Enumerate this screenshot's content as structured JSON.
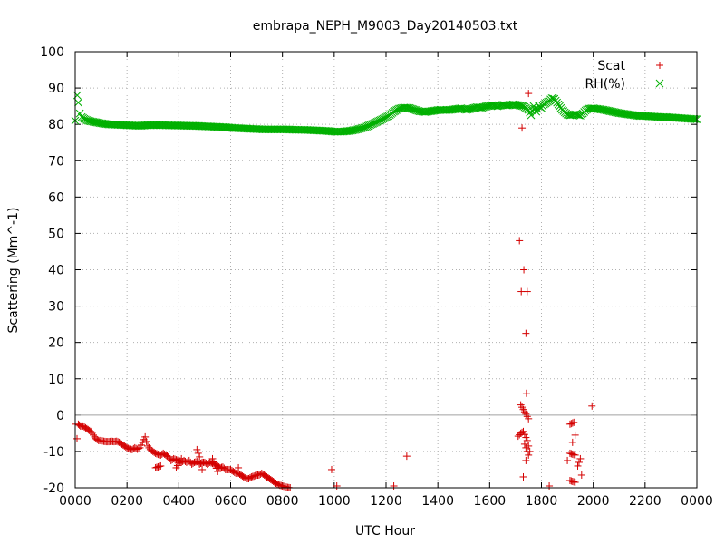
{
  "chart_data": {
    "type": "scatter",
    "title": "embrapa_NEPH_M9003_Day20140503.txt",
    "xlabel": "UTC Hour",
    "ylabel": "Scattering (Mm^-1)",
    "xlim": [
      0,
      24
    ],
    "ylim": [
      -20,
      100
    ],
    "x_tick_labels": [
      "0000",
      "0200",
      "0400",
      "0600",
      "0800",
      "1000",
      "1200",
      "1400",
      "1600",
      "1800",
      "2000",
      "2200",
      "0000"
    ],
    "y_ticks": [
      -20,
      -10,
      0,
      10,
      20,
      30,
      40,
      50,
      60,
      70,
      80,
      90,
      100
    ],
    "zero_line": true,
    "grid": true,
    "legend_position": "top-right",
    "series": [
      {
        "name": "Scat",
        "marker": "plus",
        "color": "#d40000",
        "points": [
          [
            0.0,
            -2.5
          ],
          [
            0.07,
            -6.5
          ],
          [
            0.12,
            -2.5
          ],
          [
            0.2,
            -3.0
          ],
          [
            0.3,
            -3.0
          ],
          [
            0.4,
            -3.5
          ],
          [
            0.5,
            -4.0
          ],
          [
            0.6,
            -4.5
          ],
          [
            0.7,
            -5.5
          ],
          [
            0.8,
            -6.5
          ],
          [
            0.9,
            -7.0
          ],
          [
            1.0,
            -7.0
          ],
          [
            1.1,
            -7.2
          ],
          [
            1.2,
            -7.3
          ],
          [
            1.3,
            -7.3
          ],
          [
            1.4,
            -7.2
          ],
          [
            1.5,
            -7.3
          ],
          [
            1.6,
            -7.2
          ],
          [
            1.7,
            -7.5
          ],
          [
            1.8,
            -8.0
          ],
          [
            1.9,
            -8.5
          ],
          [
            2.0,
            -9.0
          ],
          [
            2.1,
            -9.3
          ],
          [
            2.2,
            -9.5
          ],
          [
            2.3,
            -9.0
          ],
          [
            2.4,
            -9.4
          ],
          [
            2.5,
            -9.0
          ],
          [
            2.6,
            -7.5
          ],
          [
            2.7,
            -6.0
          ],
          [
            2.8,
            -8.5
          ],
          [
            2.9,
            -9.5
          ],
          [
            3.0,
            -10.0
          ],
          [
            3.1,
            -10.5
          ],
          [
            3.2,
            -10.8
          ],
          [
            3.3,
            -11.0
          ],
          [
            3.4,
            -10.5
          ],
          [
            3.5,
            -11.0
          ],
          [
            3.6,
            -11.5
          ],
          [
            3.7,
            -12.5
          ],
          [
            3.8,
            -12.0
          ],
          [
            3.9,
            -12.3
          ],
          [
            4.0,
            -12.5
          ],
          [
            4.1,
            -13.0
          ],
          [
            4.2,
            -12.5
          ],
          [
            4.3,
            -13.0
          ],
          [
            4.4,
            -12.5
          ],
          [
            4.5,
            -13.5
          ],
          [
            4.6,
            -13.0
          ],
          [
            4.7,
            -12.8
          ],
          [
            4.8,
            -13.5
          ],
          [
            4.9,
            -13.0
          ],
          [
            5.0,
            -13.0
          ],
          [
            5.1,
            -13.5
          ],
          [
            5.2,
            -13.0
          ],
          [
            5.3,
            -13.3
          ],
          [
            5.4,
            -13.5
          ],
          [
            5.5,
            -14.0
          ],
          [
            5.6,
            -14.5
          ],
          [
            5.7,
            -14.3
          ],
          [
            5.8,
            -15.0
          ],
          [
            5.9,
            -15.0
          ],
          [
            6.0,
            -15.0
          ],
          [
            6.1,
            -15.5
          ],
          [
            6.2,
            -16.0
          ],
          [
            6.3,
            -16.0
          ],
          [
            6.4,
            -16.5
          ],
          [
            6.5,
            -17.0
          ],
          [
            6.6,
            -17.5
          ],
          [
            6.7,
            -17.5
          ],
          [
            6.8,
            -17.0
          ],
          [
            6.9,
            -16.8
          ],
          [
            7.0,
            -16.5
          ],
          [
            7.1,
            -16.5
          ],
          [
            7.2,
            -16.0
          ],
          [
            7.3,
            -16.5
          ],
          [
            7.4,
            -17.0
          ],
          [
            7.5,
            -17.5
          ],
          [
            7.6,
            -18.0
          ],
          [
            7.7,
            -18.5
          ],
          [
            7.8,
            -19.0
          ],
          [
            7.9,
            -19.3
          ],
          [
            8.0,
            -19.5
          ],
          [
            8.1,
            -19.7
          ],
          [
            8.2,
            -19.9
          ],
          [
            8.3,
            -20.0
          ],
          [
            3.1,
            -14.5
          ],
          [
            3.3,
            -14.0
          ],
          [
            3.9,
            -14.5
          ],
          [
            4.1,
            -12.0
          ],
          [
            4.7,
            -9.5
          ],
          [
            4.8,
            -11.5
          ],
          [
            4.9,
            -15.0
          ],
          [
            5.3,
            -12.0
          ],
          [
            5.5,
            -15.5
          ],
          [
            6.3,
            -14.5
          ],
          [
            9.9,
            -15.0
          ],
          [
            10.1,
            -19.5
          ],
          [
            12.3,
            -19.5
          ],
          [
            12.8,
            -11.3
          ],
          [
            17.15,
            48.0
          ],
          [
            17.22,
            34.0
          ],
          [
            17.32,
            40.0
          ],
          [
            17.4,
            22.5
          ],
          [
            17.45,
            34.0
          ],
          [
            17.25,
            79.0
          ],
          [
            17.5,
            88.5
          ],
          [
            17.42,
            6.0
          ],
          [
            17.2,
            2.8
          ],
          [
            17.5,
            -1.0
          ],
          [
            17.1,
            -5.8
          ],
          [
            17.2,
            -5.0
          ],
          [
            17.3,
            -4.5
          ],
          [
            17.45,
            -7.0
          ],
          [
            17.55,
            -10.0
          ],
          [
            17.35,
            -8.0
          ],
          [
            17.5,
            -11.0
          ],
          [
            17.4,
            -12.5
          ],
          [
            17.3,
            -17.0
          ],
          [
            18.3,
            -19.5
          ],
          [
            19.1,
            -2.5
          ],
          [
            19.25,
            -2.0
          ],
          [
            19.3,
            -5.5
          ],
          [
            19.2,
            -7.5
          ],
          [
            19.1,
            -10.5
          ],
          [
            19.3,
            -11.0
          ],
          [
            19.0,
            -12.5
          ],
          [
            19.4,
            -14.0
          ],
          [
            19.5,
            -12.0
          ],
          [
            19.55,
            -16.5
          ],
          [
            19.1,
            -18.0
          ],
          [
            19.3,
            -18.5
          ],
          [
            19.95,
            2.5
          ]
        ]
      },
      {
        "name": "RH(%)",
        "marker": "cross",
        "color": "#00b000",
        "points": [
          [
            0.0,
            81.0
          ],
          [
            0.08,
            88.0
          ],
          [
            0.12,
            86.0
          ],
          [
            0.18,
            83.0
          ],
          [
            0.25,
            82.0
          ],
          [
            0.35,
            81.5
          ],
          [
            0.5,
            81.0
          ],
          [
            0.7,
            80.7
          ],
          [
            1.0,
            80.3
          ],
          [
            1.3,
            80.0
          ],
          [
            1.6,
            79.9
          ],
          [
            1.9,
            79.8
          ],
          [
            2.2,
            79.7
          ],
          [
            2.5,
            79.6
          ],
          [
            2.8,
            79.8
          ],
          [
            3.1,
            79.8
          ],
          [
            3.4,
            79.8
          ],
          [
            3.7,
            79.7
          ],
          [
            4.0,
            79.7
          ],
          [
            4.3,
            79.6
          ],
          [
            4.6,
            79.6
          ],
          [
            4.9,
            79.5
          ],
          [
            5.2,
            79.4
          ],
          [
            5.5,
            79.3
          ],
          [
            5.8,
            79.2
          ],
          [
            6.1,
            79.0
          ],
          [
            6.4,
            78.9
          ],
          [
            6.7,
            78.8
          ],
          [
            7.0,
            78.7
          ],
          [
            7.3,
            78.6
          ],
          [
            7.6,
            78.6
          ],
          [
            7.9,
            78.6
          ],
          [
            8.2,
            78.6
          ],
          [
            8.5,
            78.5
          ],
          [
            8.8,
            78.5
          ],
          [
            9.1,
            78.4
          ],
          [
            9.4,
            78.3
          ],
          [
            9.7,
            78.2
          ],
          [
            10.0,
            78.0
          ],
          [
            10.3,
            78.0
          ],
          [
            10.6,
            78.2
          ],
          [
            10.9,
            78.6
          ],
          [
            11.2,
            79.2
          ],
          [
            11.5,
            80.2
          ],
          [
            11.8,
            81.2
          ],
          [
            12.1,
            82.3
          ],
          [
            12.3,
            83.5
          ],
          [
            12.5,
            84.3
          ],
          [
            12.7,
            84.6
          ],
          [
            12.9,
            84.5
          ],
          [
            13.1,
            84.0
          ],
          [
            13.3,
            83.6
          ],
          [
            13.5,
            83.4
          ],
          [
            13.7,
            83.6
          ],
          [
            13.9,
            83.8
          ],
          [
            14.1,
            84.0
          ],
          [
            14.3,
            83.9
          ],
          [
            14.5,
            84.0
          ],
          [
            14.7,
            84.2
          ],
          [
            14.9,
            84.4
          ],
          [
            15.1,
            84.0
          ],
          [
            15.3,
            84.3
          ],
          [
            15.5,
            84.7
          ],
          [
            15.7,
            84.6
          ],
          [
            15.9,
            85.0
          ],
          [
            16.1,
            85.3
          ],
          [
            16.3,
            85.0
          ],
          [
            16.5,
            85.4
          ],
          [
            16.7,
            85.2
          ],
          [
            16.9,
            85.5
          ],
          [
            17.1,
            85.3
          ],
          [
            17.3,
            85.0
          ],
          [
            17.5,
            84.0
          ],
          [
            17.6,
            82.5
          ],
          [
            17.7,
            85.0
          ],
          [
            17.8,
            83.5
          ],
          [
            17.9,
            85.0
          ],
          [
            18.0,
            84.5
          ],
          [
            18.1,
            85.5
          ],
          [
            18.2,
            86.0
          ],
          [
            18.3,
            86.5
          ],
          [
            18.4,
            87.2
          ],
          [
            18.5,
            87.0
          ],
          [
            18.6,
            86.0
          ],
          [
            18.7,
            85.0
          ],
          [
            18.8,
            84.0
          ],
          [
            18.9,
            83.3
          ],
          [
            19.0,
            82.7
          ],
          [
            19.1,
            82.5
          ],
          [
            19.2,
            82.6
          ],
          [
            19.3,
            82.8
          ],
          [
            19.4,
            82.6
          ],
          [
            19.5,
            82.4
          ],
          [
            19.6,
            83.0
          ],
          [
            19.7,
            83.8
          ],
          [
            19.8,
            84.3
          ],
          [
            20.0,
            84.4
          ],
          [
            20.2,
            84.2
          ],
          [
            20.4,
            84.0
          ],
          [
            20.6,
            83.7
          ],
          [
            20.8,
            83.4
          ],
          [
            21.0,
            83.1
          ],
          [
            21.2,
            82.9
          ],
          [
            21.4,
            82.7
          ],
          [
            21.6,
            82.5
          ],
          [
            21.8,
            82.3
          ],
          [
            22.0,
            82.3
          ],
          [
            22.2,
            82.2
          ],
          [
            22.4,
            82.1
          ],
          [
            22.6,
            82.0
          ],
          [
            22.8,
            82.0
          ],
          [
            23.0,
            81.9
          ],
          [
            23.2,
            81.8
          ],
          [
            23.4,
            81.7
          ],
          [
            23.6,
            81.6
          ],
          [
            23.8,
            81.5
          ],
          [
            24.0,
            81.4
          ]
        ]
      }
    ]
  }
}
